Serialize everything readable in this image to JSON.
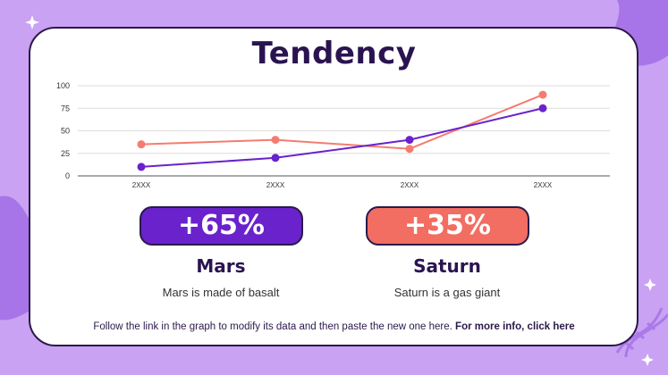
{
  "slide": {
    "title": "Tendency",
    "footer_text": "Follow the link in the graph to modify its data and then paste the new one here.",
    "footer_link": "For more info, click here"
  },
  "cards": [
    {
      "percent": "+65%",
      "name": "Mars",
      "description": "Mars is made of basalt",
      "color": "#6a22cc"
    },
    {
      "percent": "+35%",
      "name": "Saturn",
      "description": "Saturn is a gas giant",
      "color": "#f26d62"
    }
  ],
  "chart_data": {
    "type": "line",
    "categories": [
      "2XXX",
      "2XXX",
      "2XXX",
      "2XXX"
    ],
    "series": [
      {
        "color": "#f47c70",
        "values": [
          35,
          40,
          30,
          90
        ]
      },
      {
        "color": "#6a22cc",
        "values": [
          10,
          20,
          40,
          75
        ]
      }
    ],
    "yticks": [
      0,
      25,
      50,
      75,
      100
    ],
    "ylim": [
      0,
      100
    ],
    "grid": true,
    "title": "",
    "xlabel": "",
    "ylabel": ""
  },
  "colors": {
    "background": "#c9a2f3",
    "accent_dark": "#2a1450",
    "blob": "#a875e8"
  }
}
